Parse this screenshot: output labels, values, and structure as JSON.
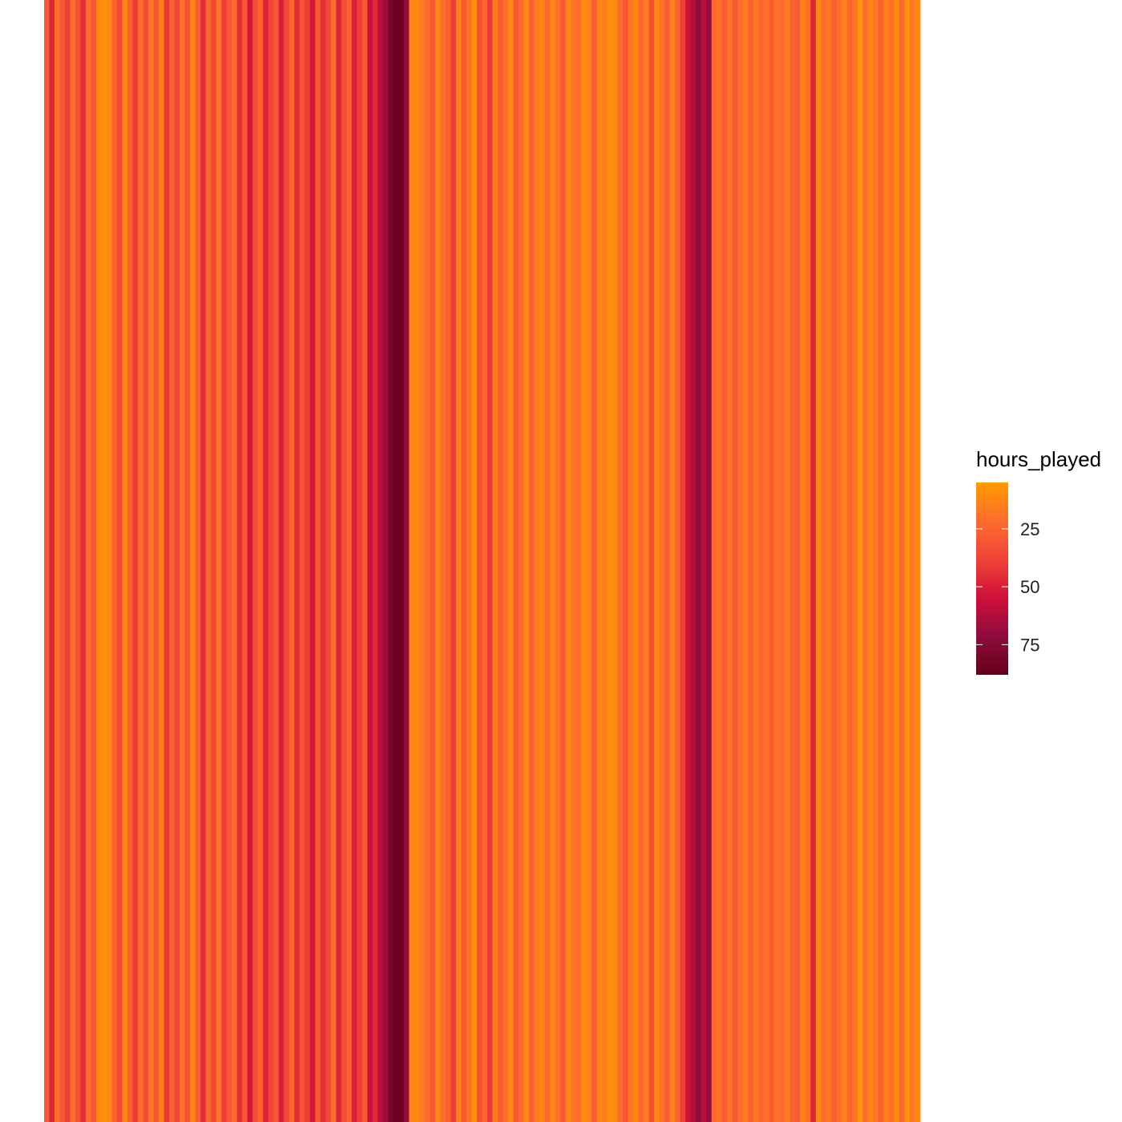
{
  "chart_data": {
    "type": "heatmap",
    "title": "",
    "xlabel": "",
    "ylabel": "",
    "axis_text": "none",
    "grid": false,
    "colorscale": {
      "low_color": "#FF9A00",
      "mid_colors": [
        "#FE6C2E",
        "#F04437",
        "#CF0F3A",
        "#8E0C3F"
      ],
      "high_color": "#66001A",
      "range": [
        5,
        88
      ],
      "reversed_bar": true
    },
    "legend": {
      "title": "hours_played",
      "placement": "right",
      "ticks": [
        {
          "label": "25",
          "value": 25
        },
        {
          "label": "50",
          "value": 50
        },
        {
          "label": "75",
          "value": 75
        }
      ]
    },
    "values": [
      30,
      48,
      20,
      30,
      40,
      20,
      32,
      45,
      22,
      30,
      12,
      8,
      12,
      25,
      36,
      12,
      28,
      40,
      22,
      35,
      18,
      30,
      14,
      42,
      26,
      38,
      20,
      32,
      12,
      28,
      45,
      24,
      36,
      18,
      40,
      30,
      22,
      44,
      30,
      52,
      34,
      26,
      48,
      38,
      30,
      50,
      36,
      24,
      46,
      32,
      40,
      52,
      30,
      44,
      36,
      20,
      48,
      34,
      26,
      50,
      40,
      30,
      56,
      46,
      60,
      68,
      80,
      86,
      84,
      70,
      12,
      10,
      16,
      22,
      30,
      12,
      20,
      26,
      40,
      14,
      30,
      20,
      8,
      34,
      24,
      42,
      16,
      28,
      20,
      12,
      30,
      22,
      10,
      26,
      16,
      12,
      24,
      12,
      20,
      30,
      12,
      18,
      22,
      10,
      14,
      28,
      12,
      16,
      8,
      12,
      22,
      30,
      18,
      12,
      24,
      16,
      34,
      12,
      20,
      28,
      14,
      26,
      40,
      54,
      62,
      72,
      60,
      70,
      24,
      20,
      28,
      18,
      30,
      22,
      16,
      26,
      18,
      24,
      20,
      28,
      18,
      22,
      16,
      26,
      28,
      14,
      20,
      48,
      12,
      22,
      18,
      26,
      20,
      14,
      24,
      18,
      8,
      22,
      12,
      18,
      26,
      14,
      20,
      10,
      24,
      8,
      18,
      12
    ]
  }
}
